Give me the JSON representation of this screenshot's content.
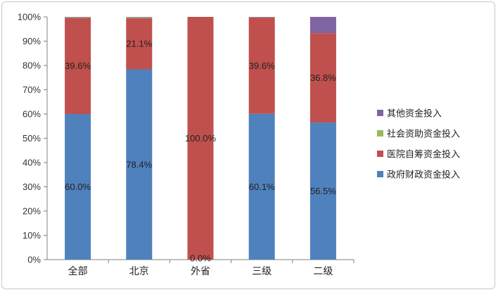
{
  "chart_data": {
    "type": "bar",
    "stacked": true,
    "percent": true,
    "categories": [
      "全部",
      "北京",
      "外省",
      "三级",
      "二级"
    ],
    "series": [
      {
        "name": "政府财政资金投入",
        "color": "#4F81BD",
        "values": [
          60.0,
          78.4,
          0.0,
          60.1,
          56.5
        ]
      },
      {
        "name": "医院自筹资金投入",
        "color": "#C0504D",
        "values": [
          39.6,
          21.1,
          100.0,
          39.6,
          36.8
        ]
      },
      {
        "name": "社会资助资金投入",
        "color": "#9BBB59",
        "values": [
          0.2,
          0.3,
          0.0,
          0.1,
          0.0
        ]
      },
      {
        "name": "其他资金投入",
        "color": "#8064A2",
        "values": [
          0.2,
          0.2,
          0.0,
          0.2,
          6.7
        ]
      }
    ],
    "data_labels": [
      [
        "60.0%",
        "78.4%",
        "0.0%",
        "60.1%",
        "56.5%"
      ],
      [
        "39.6%",
        "21.1%",
        "100.0%",
        "39.6%",
        "36.8%"
      ]
    ],
    "yticks": [
      "0%",
      "10%",
      "20%",
      "30%",
      "40%",
      "50%",
      "60%",
      "70%",
      "80%",
      "90%",
      "100%"
    ],
    "ylim": [
      0,
      100
    ],
    "grid": false,
    "legend_position": "right",
    "legend_order": [
      "其他资金投入",
      "社会资助资金投入",
      "医院自筹资金投入",
      "政府财政资金投入"
    ],
    "title": "",
    "xlabel": "",
    "ylabel": ""
  }
}
